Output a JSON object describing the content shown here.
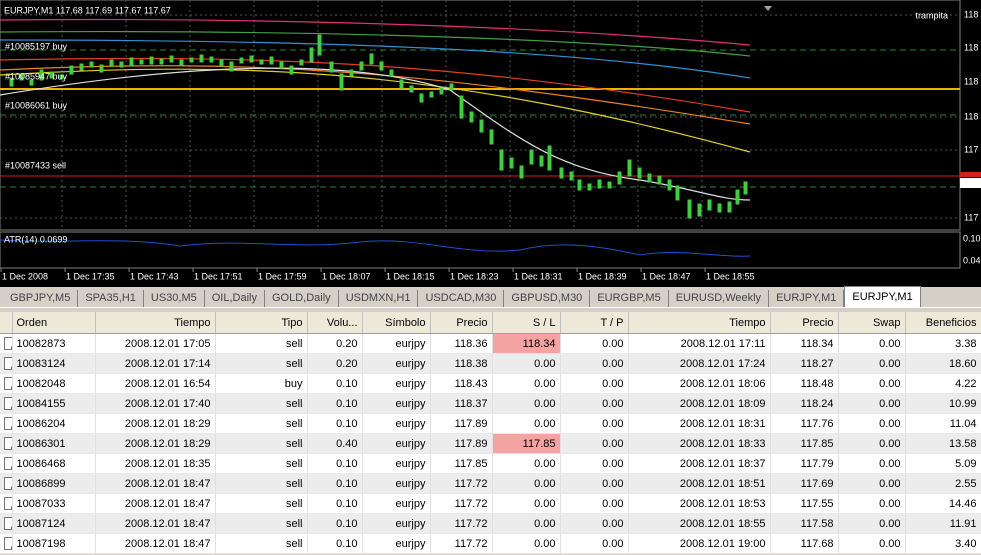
{
  "chart": {
    "title": "EURJPY,M1  117.68 117.69 117.67 117.67",
    "expert": "trampita",
    "order_labels": [
      "#10085197 buy",
      "#10085947 buy",
      "#10086061 buy",
      "#10087433 sell"
    ],
    "indicator_label": "ATR(14) 0.0699",
    "price_labels": [
      "118",
      "118",
      "118",
      "118",
      "117",
      "117",
      "117"
    ],
    "indicator_price_labels": [
      "0.10",
      "0.04"
    ],
    "time_labels": [
      "1 Dec 2008",
      "1 Dec 17:35",
      "1 Dec 17:43",
      "1 Dec 17:51",
      "1 Dec 17:59",
      "1 Dec 18:07",
      "1 Dec 18:15",
      "1 Dec 18:23",
      "1 Dec 18:31",
      "1 Dec 18:39",
      "1 Dec 18:47",
      "1 Dec 18:55"
    ]
  },
  "tabs": [
    "GBPJPY,M5",
    "SPA35,H1",
    "US30,M5",
    "OIL,Daily",
    "GOLD,Daily",
    "USDMXN,H1",
    "USDCAD,M30",
    "GBPUSD,M30",
    "EURGBP,M5",
    "EURUSD,Weekly",
    "EURJPY,M1",
    "EURJPY,M1"
  ],
  "active_tab": 11,
  "table": {
    "headers": [
      "Orden",
      "Tiempo",
      "Tipo",
      "Volu...",
      "Símbolo",
      "Precio",
      "S / L",
      "T / P",
      "Tiempo",
      "Precio",
      "Swap",
      "Beneficios"
    ],
    "rows": [
      [
        "10082873",
        "2008.12.01 17:05",
        "sell",
        "0.20",
        "eurjpy",
        "118.36",
        "118.34",
        "0.00",
        "2008.12.01 17:11",
        "118.34",
        "0.00",
        "3.38"
      ],
      [
        "10083124",
        "2008.12.01 17:14",
        "sell",
        "0.20",
        "eurjpy",
        "118.38",
        "0.00",
        "0.00",
        "2008.12.01 17:24",
        "118.27",
        "0.00",
        "18.60"
      ],
      [
        "10082048",
        "2008.12.01 16:54",
        "buy",
        "0.10",
        "eurjpy",
        "118.43",
        "0.00",
        "0.00",
        "2008.12.01 18:06",
        "118.48",
        "0.00",
        "4.22"
      ],
      [
        "10084155",
        "2008.12.01 17:40",
        "sell",
        "0.10",
        "eurjpy",
        "118.37",
        "0.00",
        "0.00",
        "2008.12.01 18:09",
        "118.24",
        "0.00",
        "10.99"
      ],
      [
        "10086204",
        "2008.12.01 18:29",
        "sell",
        "0.10",
        "eurjpy",
        "117.89",
        "0.00",
        "0.00",
        "2008.12.01 18:31",
        "117.76",
        "0.00",
        "11.04"
      ],
      [
        "10086301",
        "2008.12.01 18:29",
        "sell",
        "0.40",
        "eurjpy",
        "117.89",
        "117.85",
        "0.00",
        "2008.12.01 18:33",
        "117.85",
        "0.00",
        "13.58"
      ],
      [
        "10086468",
        "2008.12.01 18:35",
        "sell",
        "0.10",
        "eurjpy",
        "117.85",
        "0.00",
        "0.00",
        "2008.12.01 18:37",
        "117.79",
        "0.00",
        "5.09"
      ],
      [
        "10086899",
        "2008.12.01 18:47",
        "sell",
        "0.10",
        "eurjpy",
        "117.72",
        "0.00",
        "0.00",
        "2008.12.01 18:51",
        "117.69",
        "0.00",
        "2.55"
      ],
      [
        "10087033",
        "2008.12.01 18:47",
        "sell",
        "0.10",
        "eurjpy",
        "117.72",
        "0.00",
        "0.00",
        "2008.12.01 18:53",
        "117.55",
        "0.00",
        "14.46"
      ],
      [
        "10087124",
        "2008.12.01 18:47",
        "sell",
        "0.10",
        "eurjpy",
        "117.72",
        "0.00",
        "0.00",
        "2008.12.01 18:55",
        "117.58",
        "0.00",
        "11.91"
      ],
      [
        "10087198",
        "2008.12.01 18:47",
        "sell",
        "0.10",
        "eurjpy",
        "117.72",
        "0.00",
        "0.00",
        "2008.12.01 19:00",
        "117.68",
        "0.00",
        "3.40"
      ]
    ],
    "highlighted_cells": [
      [
        0,
        6
      ],
      [
        5,
        6
      ]
    ]
  }
}
